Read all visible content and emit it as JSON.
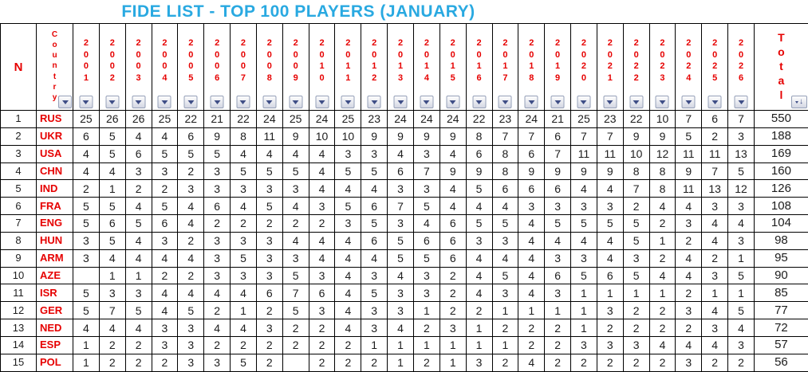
{
  "title": "FIDE LIST - TOP 100 PLAYERS (JANUARY)",
  "colors": {
    "title_text": "#29a9e1",
    "header_text": "#e60000",
    "country_text": "#e60000",
    "body_text": "#1c1c1c",
    "grid_border": "#000000",
    "filter_button_glyph": "#3f4e86"
  },
  "icons": {
    "filter_dropdown": "filter-dropdown-triangle",
    "total_sort": "sort-down-arrow"
  },
  "table": {
    "headers": {
      "n": "N",
      "country": "Country",
      "total": "Total"
    },
    "years": [
      "2001",
      "2002",
      "2003",
      "2004",
      "2005",
      "2006",
      "2007",
      "2008",
      "2009",
      "2010",
      "2011",
      "2012",
      "2013",
      "2014",
      "2015",
      "2016",
      "2017",
      "2018",
      "2019",
      "2020",
      "2021",
      "2022",
      "2023",
      "2024",
      "2025",
      "2026"
    ],
    "rows": [
      {
        "n": "1",
        "country": "RUS",
        "values": [
          "25",
          "26",
          "26",
          "25",
          "22",
          "21",
          "22",
          "24",
          "25",
          "24",
          "25",
          "23",
          "24",
          "24",
          "24",
          "22",
          "23",
          "24",
          "21",
          "25",
          "23",
          "22",
          "10",
          "7",
          "6",
          "7"
        ],
        "total": "550"
      },
      {
        "n": "2",
        "country": "UKR",
        "values": [
          "6",
          "5",
          "4",
          "4",
          "6",
          "9",
          "8",
          "11",
          "9",
          "10",
          "10",
          "9",
          "9",
          "9",
          "9",
          "8",
          "7",
          "7",
          "6",
          "7",
          "7",
          "9",
          "9",
          "5",
          "2",
          "3"
        ],
        "total": "188"
      },
      {
        "n": "3",
        "country": "USA",
        "values": [
          "4",
          "5",
          "6",
          "5",
          "5",
          "5",
          "4",
          "4",
          "4",
          "4",
          "3",
          "3",
          "4",
          "3",
          "4",
          "6",
          "8",
          "6",
          "7",
          "11",
          "11",
          "10",
          "12",
          "11",
          "11",
          "13"
        ],
        "total": "169"
      },
      {
        "n": "4",
        "country": "CHN",
        "values": [
          "4",
          "4",
          "3",
          "3",
          "2",
          "3",
          "5",
          "5",
          "5",
          "4",
          "5",
          "5",
          "6",
          "7",
          "9",
          "9",
          "8",
          "9",
          "9",
          "9",
          "9",
          "8",
          "8",
          "9",
          "7",
          "5"
        ],
        "total": "160"
      },
      {
        "n": "5",
        "country": "IND",
        "values": [
          "2",
          "1",
          "2",
          "2",
          "3",
          "3",
          "3",
          "3",
          "3",
          "4",
          "4",
          "4",
          "3",
          "3",
          "4",
          "5",
          "6",
          "6",
          "6",
          "4",
          "4",
          "7",
          "8",
          "11",
          "13",
          "12"
        ],
        "total": "126"
      },
      {
        "n": "6",
        "country": "FRA",
        "values": [
          "5",
          "5",
          "4",
          "5",
          "4",
          "6",
          "4",
          "5",
          "4",
          "3",
          "5",
          "6",
          "7",
          "5",
          "4",
          "4",
          "4",
          "3",
          "3",
          "3",
          "3",
          "2",
          "4",
          "4",
          "3",
          "3"
        ],
        "total": "108"
      },
      {
        "n": "7",
        "country": "ENG",
        "values": [
          "5",
          "6",
          "5",
          "6",
          "4",
          "2",
          "2",
          "2",
          "2",
          "2",
          "3",
          "5",
          "3",
          "4",
          "6",
          "5",
          "5",
          "4",
          "5",
          "5",
          "5",
          "5",
          "2",
          "3",
          "4",
          "4"
        ],
        "total": "104"
      },
      {
        "n": "8",
        "country": "HUN",
        "values": [
          "3",
          "5",
          "4",
          "3",
          "2",
          "3",
          "3",
          "3",
          "4",
          "4",
          "4",
          "6",
          "5",
          "6",
          "6",
          "3",
          "3",
          "4",
          "4",
          "4",
          "4",
          "5",
          "1",
          "2",
          "4",
          "3"
        ],
        "total": "98"
      },
      {
        "n": "9",
        "country": "ARM",
        "values": [
          "3",
          "4",
          "4",
          "4",
          "4",
          "3",
          "5",
          "3",
          "3",
          "4",
          "4",
          "4",
          "5",
          "5",
          "6",
          "4",
          "4",
          "4",
          "3",
          "3",
          "4",
          "3",
          "2",
          "4",
          "2",
          "1"
        ],
        "total": "95"
      },
      {
        "n": "10",
        "country": "AZE",
        "values": [
          "",
          "1",
          "1",
          "2",
          "2",
          "3",
          "3",
          "3",
          "5",
          "3",
          "4",
          "3",
          "4",
          "3",
          "2",
          "4",
          "5",
          "4",
          "6",
          "5",
          "6",
          "5",
          "4",
          "4",
          "3",
          "5"
        ],
        "total": "90"
      },
      {
        "n": "11",
        "country": "ISR",
        "values": [
          "5",
          "3",
          "3",
          "4",
          "4",
          "4",
          "4",
          "6",
          "7",
          "6",
          "4",
          "5",
          "3",
          "3",
          "2",
          "4",
          "3",
          "4",
          "3",
          "1",
          "1",
          "1",
          "1",
          "2",
          "1",
          "1"
        ],
        "total": "85"
      },
      {
        "n": "12",
        "country": "GER",
        "values": [
          "5",
          "7",
          "5",
          "4",
          "5",
          "2",
          "1",
          "2",
          "5",
          "3",
          "4",
          "3",
          "3",
          "1",
          "2",
          "2",
          "1",
          "1",
          "1",
          "1",
          "3",
          "2",
          "2",
          "3",
          "4",
          "5"
        ],
        "total": "77"
      },
      {
        "n": "13",
        "country": "NED",
        "values": [
          "4",
          "4",
          "4",
          "3",
          "3",
          "4",
          "4",
          "3",
          "2",
          "2",
          "4",
          "3",
          "4",
          "2",
          "3",
          "1",
          "2",
          "2",
          "2",
          "1",
          "2",
          "2",
          "2",
          "2",
          "3",
          "4"
        ],
        "total": "72"
      },
      {
        "n": "14",
        "country": "ESP",
        "values": [
          "1",
          "2",
          "2",
          "3",
          "3",
          "2",
          "2",
          "2",
          "2",
          "2",
          "2",
          "1",
          "1",
          "1",
          "1",
          "1",
          "1",
          "2",
          "2",
          "3",
          "3",
          "3",
          "4",
          "4",
          "4",
          "3"
        ],
        "total": "57"
      },
      {
        "n": "15",
        "country": "POL",
        "values": [
          "1",
          "2",
          "2",
          "2",
          "3",
          "3",
          "5",
          "2",
          "",
          "2",
          "2",
          "2",
          "1",
          "2",
          "1",
          "3",
          "2",
          "4",
          "2",
          "2",
          "2",
          "2",
          "2",
          "3",
          "2",
          "2"
        ],
        "total": "56"
      }
    ]
  }
}
